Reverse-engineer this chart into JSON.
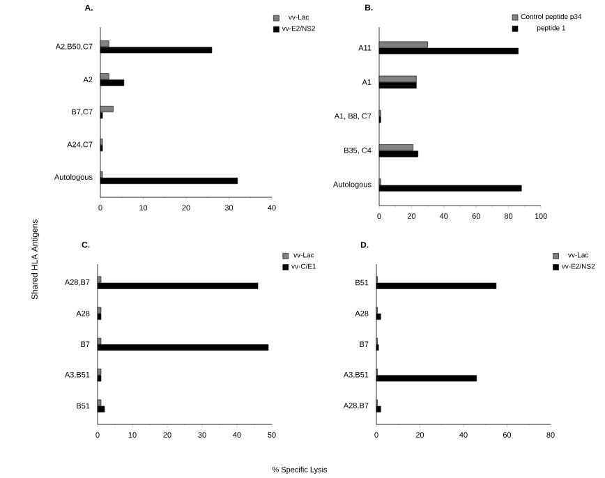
{
  "chart_data": [
    {
      "type": "bar",
      "orientation": "horizontal",
      "title": "A.",
      "ylabel": "Shared HLA Antigens",
      "categories": [
        "A2,B50,C7",
        "A2",
        "B7,C7",
        "A24,C7",
        "Autologous"
      ],
      "xlim": [
        0,
        40
      ],
      "xticks": [
        0,
        10,
        20,
        30,
        40
      ],
      "legend": "top right",
      "series": [
        {
          "name": "vv-Lac",
          "color": "#808080",
          "values": [
            2,
            2,
            3,
            0.5,
            0.5
          ]
        },
        {
          "name": "vv-E2/NS2",
          "color": "#000000",
          "values": [
            26,
            5.5,
            0.5,
            0.5,
            32
          ]
        }
      ]
    },
    {
      "type": "bar",
      "orientation": "horizontal",
      "title": "B.",
      "categories": [
        "A11",
        "A1",
        "A1, B8, C7",
        "B35, C4",
        "Autologous"
      ],
      "xlim": [
        0,
        100
      ],
      "xticks": [
        0,
        20,
        40,
        60,
        80,
        100
      ],
      "legend": "top right",
      "series": [
        {
          "name": "Control peptide p34",
          "color": "#808080",
          "values": [
            30,
            23,
            1,
            21,
            1
          ]
        },
        {
          "name": "peptide 1",
          "color": "#000000",
          "values": [
            86,
            23,
            1,
            24,
            88
          ]
        }
      ]
    },
    {
      "type": "bar",
      "orientation": "horizontal",
      "title": "C.",
      "categories": [
        "A28,B7",
        "A28",
        "B7",
        "A3,B51",
        "B51"
      ],
      "xlim": [
        0,
        50
      ],
      "xticks": [
        0,
        10,
        20,
        30,
        40,
        50
      ],
      "legend": "top right",
      "series": [
        {
          "name": "vv-Lac",
          "color": "#808080",
          "values": [
            1,
            1,
            1,
            1,
            1
          ]
        },
        {
          "name": "vv-C/E1",
          "color": "#000000",
          "values": [
            46,
            1,
            49,
            1,
            2
          ]
        }
      ]
    },
    {
      "type": "bar",
      "orientation": "horizontal",
      "title": "D.",
      "xlabel": "% Specific Lysis",
      "categories": [
        "B51",
        "A28",
        "B7",
        "A3,B51",
        "A28,B7"
      ],
      "xlim": [
        0,
        80
      ],
      "xticks": [
        0,
        20,
        40,
        60,
        80
      ],
      "legend": "top right",
      "series": [
        {
          "name": "vv-Lac",
          "color": "#808080",
          "values": [
            0.5,
            0.5,
            0.5,
            0.5,
            0.5
          ]
        },
        {
          "name": "vv-E2/NS2",
          "color": "#000000",
          "values": [
            55,
            2,
            1,
            46,
            2
          ]
        }
      ]
    }
  ]
}
